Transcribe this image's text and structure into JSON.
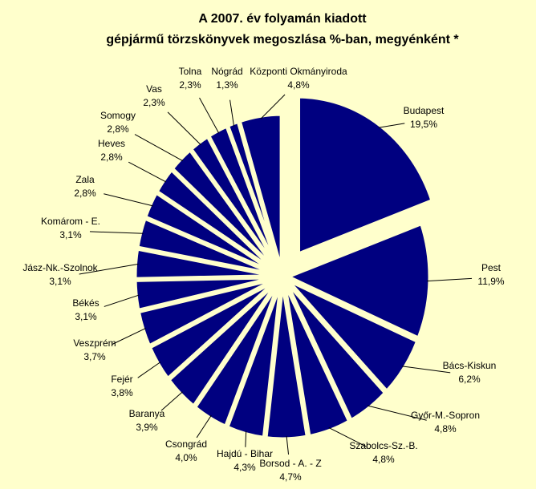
{
  "chart_data": {
    "type": "pie",
    "title": [
      "A  2007. év folyamán kiadott",
      "gépjármű törzskönyvek megoszlása %-ban, megyénként *"
    ],
    "categories": [
      "Budapest",
      "Pest",
      "Bács-Kiskun",
      "Győr-M.-Sopron",
      "Szabolcs-Sz.-B.",
      "Borsod - A. - Z",
      "Hajdú - Bihar",
      "Csongrád",
      "Baranya",
      "Fejér",
      "Veszprém",
      "Békés",
      "Jász-Nk.-Szolnok",
      "Komárom - E.",
      "Zala",
      "Heves",
      "Somogy",
      "Vas",
      "Tolna",
      "Nógrád",
      "Központi Okmányiroda"
    ],
    "values": [
      19.5,
      11.9,
      6.2,
      4.8,
      4.8,
      4.7,
      4.3,
      4.0,
      3.9,
      3.8,
      3.7,
      3.1,
      3.1,
      3.1,
      2.8,
      2.8,
      2.8,
      2.3,
      2.3,
      1.3,
      4.8
    ],
    "value_labels": [
      "19,5%",
      "11,9%",
      "6,2%",
      "4,8%",
      "4,8%",
      "4,7%",
      "4,3%",
      "4,0%",
      "3,9%",
      "3,8%",
      "3,7%",
      "3,1%",
      "3,1%",
      "3,1%",
      "2,8%",
      "2,8%",
      "2,8%",
      "2,3%",
      "2,3%",
      "1,3%",
      "4,8%"
    ],
    "color": "#000080",
    "background": "#ffffcc"
  }
}
